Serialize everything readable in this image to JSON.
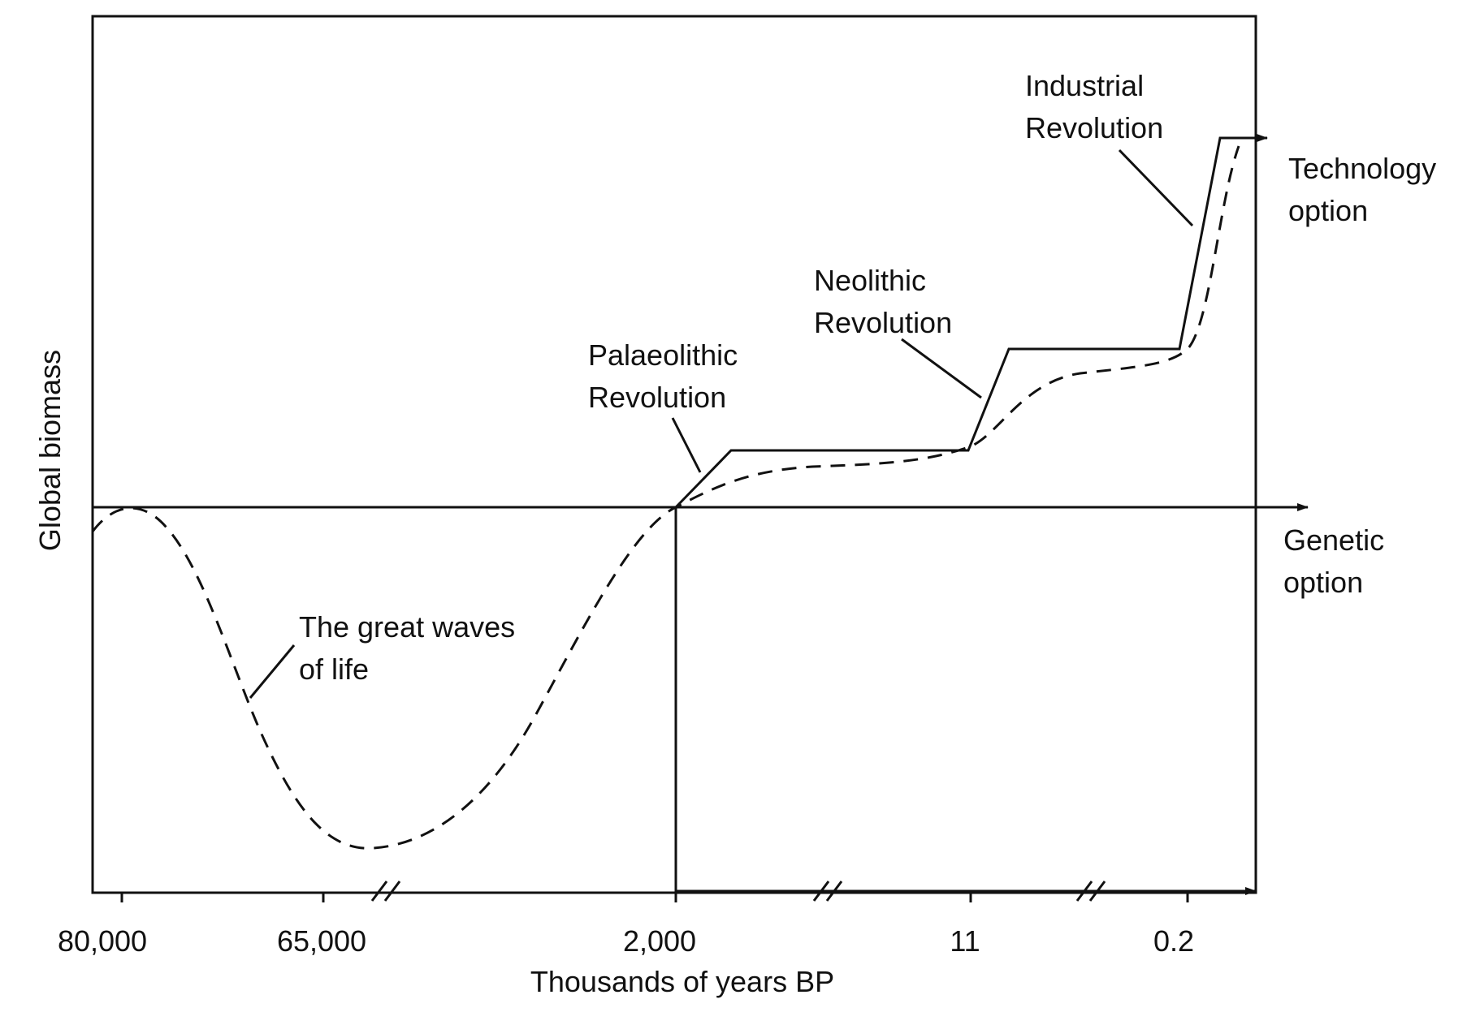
{
  "figure": {
    "y_axis_label": "Global biomass",
    "x_axis_label": "Thousands of years BP",
    "x_tick_labels": [
      "80,000",
      "65,000",
      "2,000",
      "11",
      "0.2"
    ],
    "colors": {
      "ink": "#111111",
      "background": "#ffffff"
    }
  },
  "annotations": {
    "industrial": [
      "Industrial",
      "Revolution"
    ],
    "technology": [
      "Technology",
      "option"
    ],
    "neolithic": [
      "Neolithic",
      "Revolution"
    ],
    "palaeolithic": [
      "Palaeolithic",
      "Revolution"
    ],
    "genetic": [
      "Genetic",
      "option"
    ],
    "waves": [
      "The great waves",
      "of life"
    ]
  }
}
